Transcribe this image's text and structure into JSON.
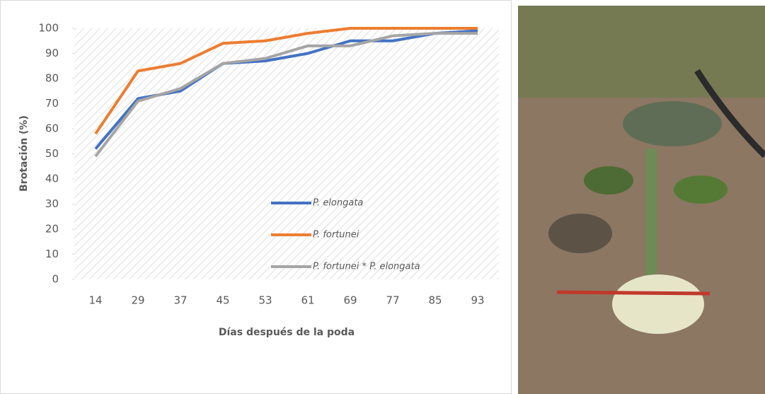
{
  "chart_data": {
    "type": "line",
    "x_label": "Días después de la poda",
    "y_label": "Brotación (%)",
    "categories": [
      "14",
      "29",
      "37",
      "45",
      "53",
      "61",
      "69",
      "77",
      "85",
      "93"
    ],
    "series": [
      {
        "name": "P. elongata",
        "color": "#4472c4",
        "values": [
          52,
          72,
          75,
          86,
          87,
          90,
          95,
          95,
          98,
          99
        ]
      },
      {
        "name": "P. fortunei",
        "color": "#ed7d31",
        "values": [
          58,
          83,
          86,
          94,
          95,
          98,
          100,
          100,
          100,
          100
        ]
      },
      {
        "name": "P. fortunei * P. elongata",
        "color": "#a5a5a5",
        "values": [
          49,
          71,
          76,
          86,
          88,
          93,
          93,
          97,
          98,
          98
        ]
      }
    ],
    "ylim": [
      0,
      100
    ],
    "yticks": [
      0,
      10,
      20,
      30,
      40,
      50,
      60,
      70,
      80,
      90,
      100
    ],
    "legend": "lower right"
  }
}
